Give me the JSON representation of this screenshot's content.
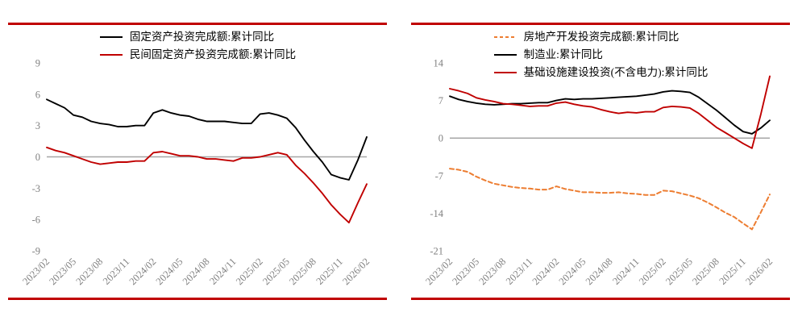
{
  "page": {
    "background": "#FFFFFF",
    "accent_rule_color": "#C00000",
    "axis_label_color": "#808080",
    "zero_line_color": "#A6A6A6"
  },
  "chart_data": [
    {
      "type": "line",
      "title": "",
      "xlabel": "",
      "ylabel": "",
      "ylim": [
        -9,
        9
      ],
      "yticks": [
        9,
        6,
        3,
        0,
        -3,
        -6,
        -9
      ],
      "grid": "zero-line-only",
      "legend_position": "top-center",
      "label_every": 3,
      "categories": [
        "2023/02",
        "2023/05",
        "2023/08",
        "2023/11",
        "2024/02",
        "2024/05",
        "2024/08",
        "2024/11",
        "2025/02",
        "2025/05",
        "2025/08",
        "2025/11",
        "2026/02"
      ],
      "series": [
        {
          "name": "固定资产投资完成额:累计同比",
          "color": "#000000",
          "dash": "solid",
          "values": [
            5.5,
            5.1,
            4.7,
            4.0,
            3.8,
            3.4,
            3.2,
            3.1,
            2.9,
            2.9,
            3.0,
            3.0,
            4.2,
            4.5,
            4.2,
            4.0,
            3.9,
            3.6,
            3.4,
            3.4,
            3.4,
            3.3,
            3.2,
            3.2,
            4.1,
            4.2,
            4.0,
            3.7,
            2.8,
            1.6,
            0.5,
            -0.5,
            -1.7,
            -2.0,
            -2.2,
            -0.3,
            1.9
          ]
        },
        {
          "name": "民间固定资产投资完成额:累计同比",
          "color": "#C00000",
          "dash": "solid",
          "values": [
            0.9,
            0.6,
            0.4,
            0.1,
            -0.2,
            -0.5,
            -0.7,
            -0.6,
            -0.5,
            -0.5,
            -0.4,
            -0.4,
            0.4,
            0.5,
            0.3,
            0.1,
            0.1,
            0.0,
            -0.2,
            -0.2,
            -0.3,
            -0.4,
            -0.1,
            -0.1,
            0.0,
            0.2,
            0.4,
            0.2,
            -0.8,
            -1.6,
            -2.5,
            -3.5,
            -4.6,
            -5.5,
            -6.3,
            -4.4,
            -2.6
          ]
        }
      ]
    },
    {
      "type": "line",
      "title": "",
      "xlabel": "",
      "ylabel": "",
      "ylim": [
        -21,
        14
      ],
      "yticks": [
        14,
        7,
        0,
        -7,
        -14,
        -21
      ],
      "grid": "zero-line-only",
      "legend_position": "top-center",
      "label_every": 3,
      "categories": [
        "2023/02",
        "2023/05",
        "2023/08",
        "2023/11",
        "2024/02",
        "2024/05",
        "2024/08",
        "2024/11",
        "2025/02",
        "2025/05",
        "2025/08",
        "2025/11",
        "2026/02"
      ],
      "series": [
        {
          "name": "房地产开发投资完成额:累计同比",
          "color": "#ED7D31",
          "dash": "dashed",
          "values": [
            -5.7,
            -5.9,
            -6.3,
            -7.2,
            -7.9,
            -8.5,
            -8.8,
            -9.1,
            -9.3,
            -9.4,
            -9.6,
            -9.6,
            -9.0,
            -9.5,
            -9.8,
            -10.1,
            -10.1,
            -10.2,
            -10.2,
            -10.1,
            -10.3,
            -10.4,
            -10.6,
            -10.6,
            -9.8,
            -9.9,
            -10.3,
            -10.7,
            -11.2,
            -12.0,
            -12.9,
            -13.9,
            -14.7,
            -15.9,
            -17.0,
            -13.8,
            -10.5
          ]
        },
        {
          "name": "制造业:累计同比",
          "color": "#000000",
          "dash": "solid",
          "values": [
            7.8,
            7.2,
            6.8,
            6.5,
            6.3,
            6.2,
            6.3,
            6.4,
            6.4,
            6.5,
            6.6,
            6.6,
            7.0,
            7.3,
            7.2,
            7.3,
            7.3,
            7.4,
            7.5,
            7.6,
            7.7,
            7.8,
            8.0,
            8.2,
            8.6,
            8.8,
            8.7,
            8.5,
            7.6,
            6.4,
            5.2,
            3.8,
            2.4,
            1.2,
            0.8,
            1.9,
            3.3
          ]
        },
        {
          "name": "基础设施建设投资(不含电力):累计同比",
          "color": "#C00000",
          "dash": "solid",
          "values": [
            9.2,
            8.8,
            8.3,
            7.5,
            7.1,
            6.8,
            6.4,
            6.3,
            6.1,
            5.9,
            6.0,
            6.0,
            6.5,
            6.7,
            6.3,
            6.0,
            5.8,
            5.3,
            4.9,
            4.6,
            4.8,
            4.7,
            4.9,
            4.9,
            5.7,
            5.9,
            5.8,
            5.6,
            4.6,
            3.3,
            2.0,
            1.0,
            0.0,
            -1.0,
            -1.9,
            4.5,
            11.5
          ]
        }
      ]
    }
  ]
}
